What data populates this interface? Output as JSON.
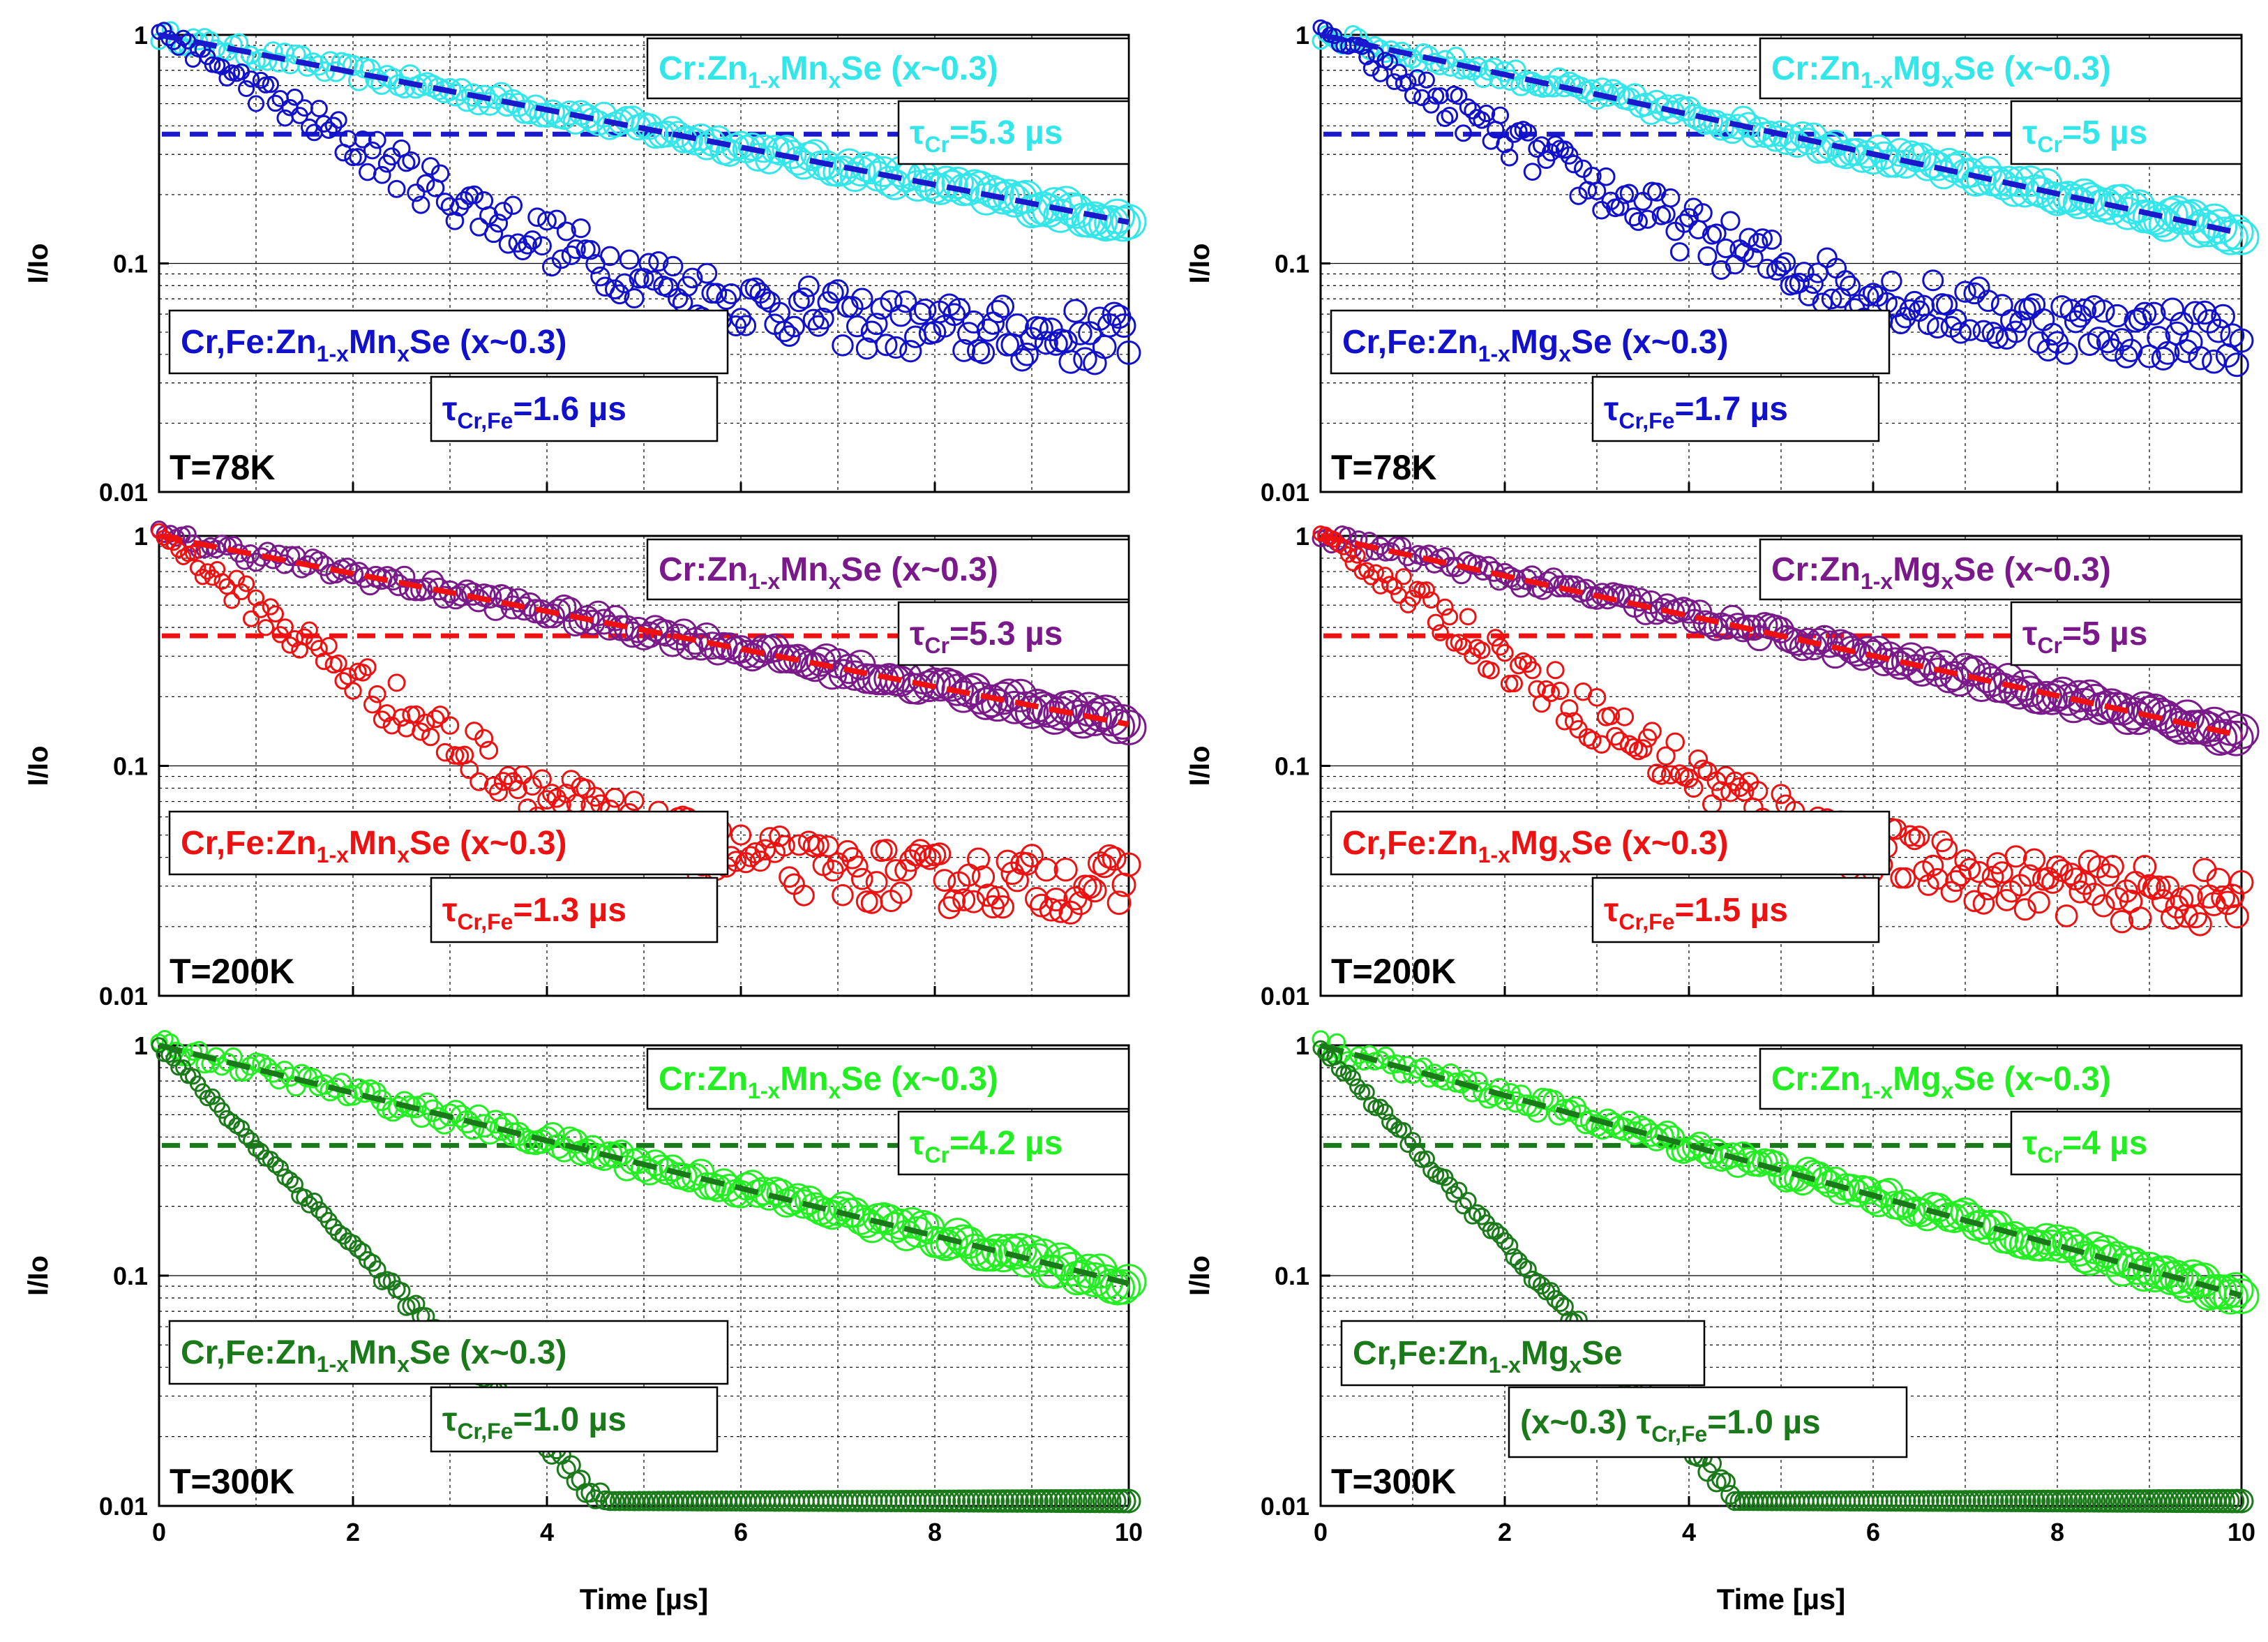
{
  "figure": {
    "x_axis_label": "Time [µs]",
    "y_axis_label": "I/Io"
  },
  "chart_data": [
    {
      "type": "scatter",
      "id": "zn-mn-78k",
      "yscale": "log",
      "xlim": [
        0,
        10
      ],
      "ylim": [
        0.01,
        1
      ],
      "xticks": [
        "0",
        "2",
        "4",
        "6",
        "8",
        "10"
      ],
      "yticks": [
        "0.01",
        "0.1",
        "1"
      ],
      "xlabel": "",
      "ylabel": "I/Io",
      "temperature": "T=78K",
      "colors": {
        "cr": "#33e6ea",
        "crfe": "#1111cc",
        "fit": "#1a1acc",
        "ref": "#1a1acc"
      },
      "cr_label": {
        "pre": "Cr:Zn",
        "s1": "1-x",
        "mid": "Mn",
        "s2": "x",
        "post": "Se (x~0.3)"
      },
      "cr_tau": {
        "sym": "τ",
        "sub": "Cr",
        "val": "=5.3 µs"
      },
      "crfe_label": {
        "pre": "Cr,Fe:Zn",
        "s1": "1-x",
        "mid": "Mn",
        "s2": "x",
        "post": "Se (x~0.3)"
      },
      "crfe_tau": {
        "sym": "τ",
        "sub": "Cr,Fe",
        "val": "=1.6 µs"
      },
      "series": [
        {
          "name": "Cr:Zn1-xMnxSe (x~0.3)",
          "tau_us": 5.3,
          "noise_floor": 0.0
        },
        {
          "name": "Cr,Fe:Zn1-xMnxSe (x~0.3)",
          "tau_us": 1.6,
          "noise_floor": 0.045
        }
      ]
    },
    {
      "type": "scatter",
      "id": "zn-mg-78k",
      "yscale": "log",
      "xlim": [
        0,
        10
      ],
      "ylim": [
        0.01,
        1
      ],
      "xticks": [
        "0",
        "2",
        "4",
        "6",
        "8",
        "10"
      ],
      "yticks": [
        "0.01",
        "0.1",
        "1"
      ],
      "xlabel": "",
      "ylabel": "I/Io",
      "temperature": "T=78K",
      "colors": {
        "cr": "#33e6ea",
        "crfe": "#1111cc",
        "fit": "#1a1acc",
        "ref": "#1a1acc"
      },
      "cr_label": {
        "pre": "Cr:Zn",
        "s1": "1-x",
        "mid": "Mg",
        "s2": "x",
        "post": "Se (x~0.3)"
      },
      "cr_tau": {
        "sym": "τ",
        "sub": "Cr",
        "val": "=5 µs"
      },
      "crfe_label": {
        "pre": "Cr,Fe:Zn",
        "s1": "1-x",
        "mid": "Mg",
        "s2": "x",
        "post": "Se (x~0.3)"
      },
      "crfe_tau": {
        "sym": "τ",
        "sub": "Cr,Fe",
        "val": "=1.7 µs"
      },
      "series": [
        {
          "name": "Cr:Zn1-xMgxSe (x~0.3)",
          "tau_us": 5.0,
          "noise_floor": 0.0
        },
        {
          "name": "Cr,Fe:Zn1-xMgxSe (x~0.3)",
          "tau_us": 1.7,
          "noise_floor": 0.045
        }
      ]
    },
    {
      "type": "scatter",
      "id": "zn-mn-200k",
      "yscale": "log",
      "xlim": [
        0,
        10
      ],
      "ylim": [
        0.01,
        1
      ],
      "xticks": [
        "0",
        "2",
        "4",
        "6",
        "8",
        "10"
      ],
      "yticks": [
        "0.01",
        "0.1",
        "1"
      ],
      "xlabel": "",
      "ylabel": "I/Io",
      "temperature": "T=200K",
      "colors": {
        "cr": "#7a1a8a",
        "crfe": "#ee1111",
        "fit": "#ee1111",
        "ref": "#ee1111"
      },
      "cr_label": {
        "pre": "Cr:Zn",
        "s1": "1-x",
        "mid": "Mn",
        "s2": "x",
        "post": "Se (x~0.3)"
      },
      "cr_tau": {
        "sym": "τ",
        "sub": "Cr",
        "val": "=5.3 µs"
      },
      "crfe_label": {
        "pre": "Cr,Fe:Zn",
        "s1": "1-x",
        "mid": "Mn",
        "s2": "x",
        "post": "Se (x~0.3)"
      },
      "crfe_tau": {
        "sym": "τ",
        "sub": "Cr,Fe",
        "val": "=1.3 µs"
      },
      "series": [
        {
          "name": "Cr:Zn1-xMnxSe (x~0.3)",
          "tau_us": 5.3,
          "noise_floor": 0.0
        },
        {
          "name": "Cr,Fe:Zn1-xMnxSe (x~0.3)",
          "tau_us": 1.3,
          "noise_floor": 0.03
        }
      ]
    },
    {
      "type": "scatter",
      "id": "zn-mg-200k",
      "yscale": "log",
      "xlim": [
        0,
        10
      ],
      "ylim": [
        0.01,
        1
      ],
      "xticks": [
        "0",
        "2",
        "4",
        "6",
        "8",
        "10"
      ],
      "yticks": [
        "0.01",
        "0.1",
        "1"
      ],
      "xlabel": "",
      "ylabel": "I/Io",
      "temperature": "T=200K",
      "colors": {
        "cr": "#7a1a8a",
        "crfe": "#ee1111",
        "fit": "#ee1111",
        "ref": "#ee1111"
      },
      "cr_label": {
        "pre": "Cr:Zn",
        "s1": "1-x",
        "mid": "Mg",
        "s2": "x",
        "post": "Se (x~0.3)"
      },
      "cr_tau": {
        "sym": "τ",
        "sub": "Cr",
        "val": "=5 µs"
      },
      "crfe_label": {
        "pre": "Cr,Fe:Zn",
        "s1": "1-x",
        "mid": "Mg",
        "s2": "x",
        "post": "Se (x~0.3)"
      },
      "crfe_tau": {
        "sym": "τ",
        "sub": "Cr,Fe",
        "val": "=1.5 µs"
      },
      "series": [
        {
          "name": "Cr:Zn1-xMgxSe (x~0.3)",
          "tau_us": 5.0,
          "noise_floor": 0.0
        },
        {
          "name": "Cr,Fe:Zn1-xMgxSe (x~0.3)",
          "tau_us": 1.5,
          "noise_floor": 0.025
        }
      ]
    },
    {
      "type": "scatter",
      "id": "zn-mn-300k",
      "yscale": "log",
      "xlim": [
        0,
        10
      ],
      "ylim": [
        0.01,
        1
      ],
      "xticks": [
        "0",
        "2",
        "4",
        "6",
        "8",
        "10"
      ],
      "yticks": [
        "0.01",
        "0.1",
        "1"
      ],
      "xlabel": "Time [µs]",
      "ylabel": "I/Io",
      "temperature": "T=300K",
      "colors": {
        "cr": "#22ee22",
        "crfe": "#1a7a1a",
        "fit": "#1a7a1a",
        "ref": "#1a7a1a"
      },
      "cr_label": {
        "pre": "Cr:Zn",
        "s1": "1-x",
        "mid": "Mn",
        "s2": "x",
        "post": "Se (x~0.3)"
      },
      "cr_tau": {
        "sym": "τ",
        "sub": "Cr",
        "val": "=4.2 µs"
      },
      "crfe_label": {
        "pre": "Cr,Fe:Zn",
        "s1": "1-x",
        "mid": "Mn",
        "s2": "x",
        "post": "Se (x~0.3)"
      },
      "crfe_tau": {
        "sym": "τ",
        "sub": "Cr,Fe",
        "val": "=1.0 µs"
      },
      "series": [
        {
          "name": "Cr:Zn1-xMnxSe (x~0.3)",
          "tau_us": 4.2,
          "noise_floor": 0.0
        },
        {
          "name": "Cr,Fe:Zn1-xMnxSe (x~0.3)",
          "tau_us": 1.0,
          "noise_floor": 0.0
        }
      ]
    },
    {
      "type": "scatter",
      "id": "zn-mg-300k",
      "yscale": "log",
      "xlim": [
        0,
        10
      ],
      "ylim": [
        0.01,
        1
      ],
      "xticks": [
        "0",
        "2",
        "4",
        "6",
        "8",
        "10"
      ],
      "yticks": [
        "0.01",
        "0.1",
        "1"
      ],
      "xlabel": "Time [µs]",
      "ylabel": "I/Io",
      "temperature": "T=300K",
      "colors": {
        "cr": "#22ee22",
        "crfe": "#1a7a1a",
        "fit": "#1a7a1a",
        "ref": "#1a7a1a"
      },
      "cr_label": {
        "pre": "Cr:Zn",
        "s1": "1-x",
        "mid": "Mg",
        "s2": "x",
        "post": "Se (x~0.3)"
      },
      "cr_tau": {
        "sym": "τ",
        "sub": "Cr",
        "val": "=4 µs"
      },
      "crfe_label": {
        "pre": "Cr,Fe:Zn",
        "s1": "1-x",
        "mid": "Mg",
        "s2": "x",
        "post": "Se"
      },
      "crfe_tau": {
        "pre": "(x~0.3)  ",
        "sym": "τ",
        "sub": "Cr,Fe",
        "val": "=1.0 µs"
      },
      "series": [
        {
          "name": "Cr:Zn1-xMgxSe (x~0.3)",
          "tau_us": 4.0,
          "noise_floor": 0.0
        },
        {
          "name": "Cr,Fe:Zn1-xMgxSe (x~0.3)",
          "tau_us": 1.0,
          "noise_floor": 0.0
        }
      ]
    }
  ]
}
